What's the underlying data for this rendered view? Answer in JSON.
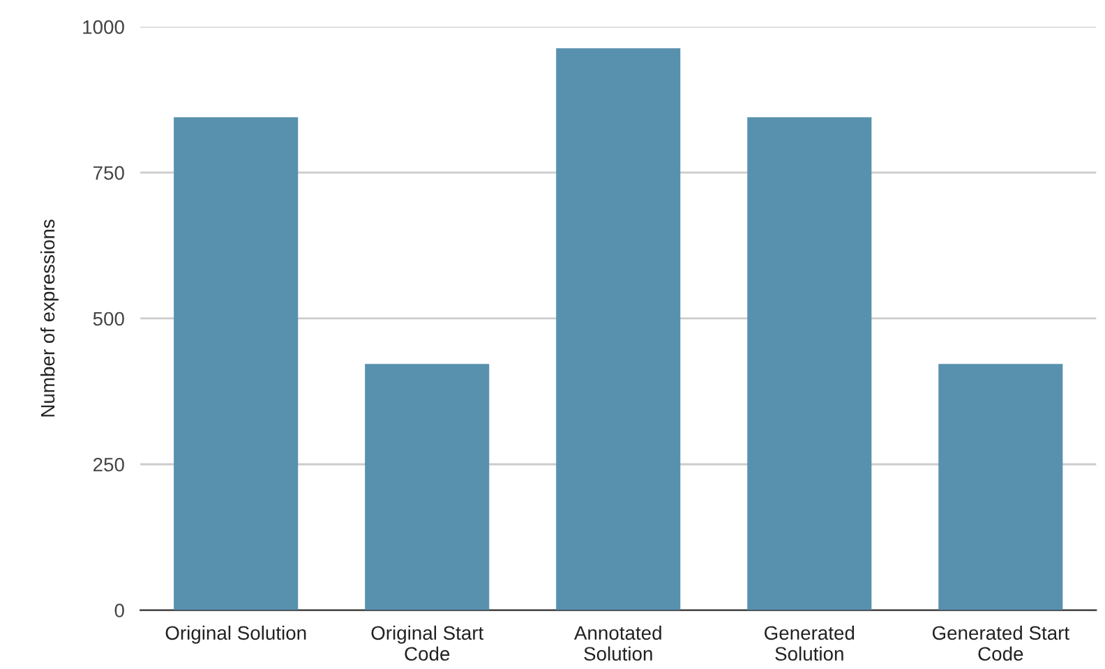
{
  "chart_data": {
    "type": "bar",
    "ylabel": "Number of expressions",
    "categories": [
      "Original Solution",
      "Original Start\nCode",
      "Annotated\nSolution",
      "Generated\nSolution",
      "Generated Start\nCode"
    ],
    "values": [
      845,
      422,
      963,
      845,
      422
    ],
    "color": "#5891ae",
    "ylim": [
      0,
      1000
    ],
    "yticks": [
      0,
      250,
      500,
      750,
      1000
    ],
    "grid": "y"
  }
}
